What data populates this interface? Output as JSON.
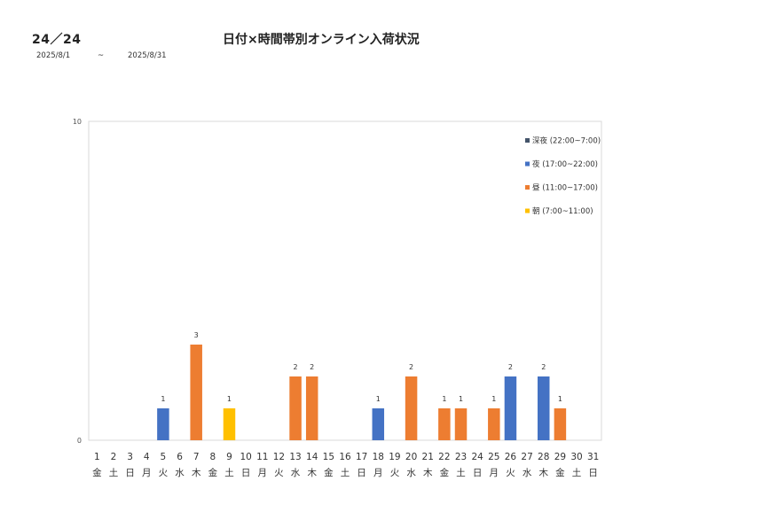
{
  "header": {
    "page_count": "24／24",
    "title": "日付×時間帯別オンライン入荷状況",
    "date_from": "2025/8/1",
    "date_sep": "~",
    "date_to": "2025/8/31"
  },
  "colors": {
    "late_night": "#44546A",
    "night": "#4472C4",
    "day": "#ED7D31",
    "morning": "#FFC000",
    "axis": "#d9d9d9"
  },
  "chart_data": {
    "type": "bar",
    "stacked": true,
    "ylim": [
      0,
      10
    ],
    "y_ticks": [
      "0",
      "10"
    ],
    "legend_position": "top-right",
    "categories": [
      "1",
      "2",
      "3",
      "4",
      "5",
      "6",
      "7",
      "8",
      "9",
      "10",
      "11",
      "12",
      "13",
      "14",
      "15",
      "16",
      "17",
      "18",
      "19",
      "20",
      "21",
      "22",
      "23",
      "24",
      "25",
      "26",
      "27",
      "28",
      "29",
      "30",
      "31"
    ],
    "weekdays": [
      "金",
      "土",
      "日",
      "月",
      "火",
      "水",
      "木",
      "金",
      "土",
      "日",
      "月",
      "火",
      "水",
      "木",
      "金",
      "土",
      "日",
      "月",
      "火",
      "水",
      "木",
      "金",
      "土",
      "日",
      "月",
      "火",
      "水",
      "木",
      "金",
      "土",
      "日"
    ],
    "series": [
      {
        "name": "深夜 (22:00~7:00)",
        "color": "#44546A",
        "values": [
          0,
          0,
          0,
          0,
          0,
          0,
          0,
          0,
          0,
          0,
          0,
          0,
          0,
          0,
          0,
          0,
          0,
          0,
          0,
          0,
          0,
          0,
          0,
          0,
          0,
          0,
          0,
          0,
          0,
          0,
          0
        ]
      },
      {
        "name": "夜 (17:00~22:00)",
        "color": "#4472C4",
        "values": [
          0,
          0,
          0,
          0,
          1,
          0,
          0,
          0,
          0,
          0,
          0,
          0,
          0,
          0,
          0,
          0,
          0,
          1,
          0,
          0,
          0,
          0,
          0,
          0,
          0,
          2,
          0,
          2,
          0,
          0,
          0
        ]
      },
      {
        "name": "昼 (11:00~17:00)",
        "color": "#ED7D31",
        "values": [
          0,
          0,
          0,
          0,
          0,
          0,
          3,
          0,
          0,
          0,
          0,
          0,
          2,
          2,
          0,
          0,
          0,
          0,
          0,
          2,
          0,
          1,
          1,
          0,
          1,
          0,
          0,
          0,
          1,
          0,
          0
        ]
      },
      {
        "name": "朝 (7:00~11:00)",
        "color": "#FFC000",
        "values": [
          0,
          0,
          0,
          0,
          0,
          0,
          0,
          0,
          1,
          0,
          0,
          0,
          0,
          0,
          0,
          0,
          0,
          0,
          0,
          0,
          0,
          0,
          0,
          0,
          0,
          0,
          0,
          0,
          0,
          0,
          0
        ]
      }
    ],
    "data_labels": [
      "",
      "",
      "",
      "",
      "1",
      "",
      "3",
      "",
      "1",
      "",
      "",
      "",
      "2",
      "2",
      "",
      "",
      "",
      "1",
      "",
      "2",
      "",
      "1",
      "1",
      "",
      "1",
      "2",
      "",
      "2",
      "1",
      "",
      ""
    ]
  }
}
